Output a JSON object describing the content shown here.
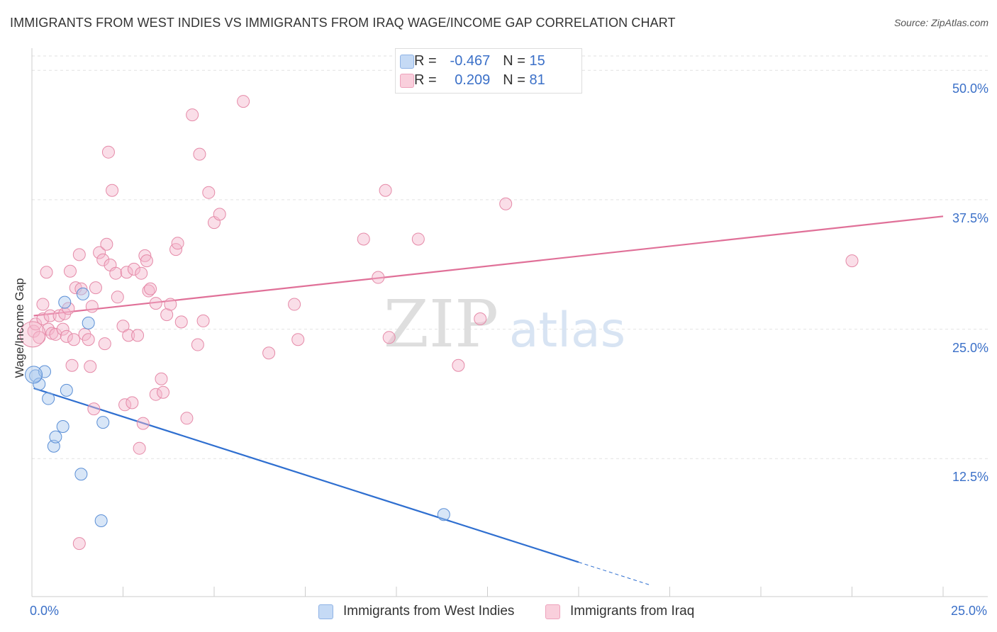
{
  "title": "IMMIGRANTS FROM WEST INDIES VS IMMIGRANTS FROM IRAQ WAGE/INCOME GAP CORRELATION CHART",
  "source": "Source: ZipAtlas.com",
  "watermark": {
    "zip": "ZIP",
    "atlas": "atlas"
  },
  "legend": {
    "r_label": "R =",
    "n_label": "N =",
    "west_indies": {
      "r": "-0.467",
      "n": "15",
      "color": "#a9c8ee"
    },
    "iraq": {
      "r": "0.209",
      "n": "81",
      "color": "#f5b6cb"
    }
  },
  "chart_data": {
    "type": "scatter",
    "xlabel": "",
    "ylabel": "Wage/Income Gap",
    "xlim": [
      0,
      25
    ],
    "ylim": [
      0,
      52
    ],
    "x_tick_labels": {
      "min": "0.0%",
      "max": "25.0%"
    },
    "y_ticks": [
      12.5,
      25.0,
      37.5,
      50.0
    ],
    "y_tick_labels": [
      "12.5%",
      "25.0%",
      "37.5%",
      "50.0%"
    ],
    "series": [
      {
        "name": "Immigrants from West Indies",
        "color": "#a9c8ee",
        "stroke": "#5b8fd6",
        "trend_color": "#2f6fd0",
        "trend": {
          "x0": 0.05,
          "y0": 19.3,
          "x1": 15.0,
          "y1": 2.5,
          "x_dash_end": 17.0
        },
        "points": [
          [
            0.1,
            20.5
          ],
          [
            0.2,
            19.7
          ],
          [
            0.35,
            20.9
          ],
          [
            0.45,
            18.3
          ],
          [
            0.6,
            13.7
          ],
          [
            0.65,
            14.6
          ],
          [
            0.85,
            15.6
          ],
          [
            0.95,
            19.1
          ],
          [
            0.9,
            27.6
          ],
          [
            1.4,
            28.4
          ],
          [
            1.55,
            25.6
          ],
          [
            1.35,
            11.0
          ],
          [
            1.9,
            6.5
          ],
          [
            1.95,
            16.0
          ],
          [
            11.3,
            7.1
          ]
        ]
      },
      {
        "name": "Immigrants from Iraq",
        "color": "#f5b6cb",
        "stroke": "#e58aa8",
        "trend_color": "#e07098",
        "trend": {
          "x0": 0.05,
          "y0": 26.3,
          "x1": 25.0,
          "y1": 35.9
        },
        "points": [
          [
            0.05,
            24.8
          ],
          [
            0.1,
            25.5
          ],
          [
            0.2,
            24.2
          ],
          [
            0.3,
            26.0
          ],
          [
            0.3,
            27.4
          ],
          [
            0.4,
            30.5
          ],
          [
            0.45,
            25.0
          ],
          [
            0.5,
            26.3
          ],
          [
            0.55,
            24.6
          ],
          [
            0.65,
            24.5
          ],
          [
            0.75,
            26.3
          ],
          [
            0.9,
            26.5
          ],
          [
            0.85,
            25.0
          ],
          [
            1.0,
            27.0
          ],
          [
            0.95,
            24.3
          ],
          [
            1.05,
            30.6
          ],
          [
            1.1,
            21.5
          ],
          [
            1.15,
            24.0
          ],
          [
            1.2,
            29.0
          ],
          [
            1.3,
            32.2
          ],
          [
            1.35,
            28.9
          ],
          [
            1.45,
            24.5
          ],
          [
            1.55,
            24.0
          ],
          [
            1.6,
            21.4
          ],
          [
            1.65,
            27.2
          ],
          [
            1.7,
            17.3
          ],
          [
            1.75,
            29.0
          ],
          [
            1.85,
            32.4
          ],
          [
            1.95,
            31.7
          ],
          [
            2.0,
            23.6
          ],
          [
            2.05,
            33.2
          ],
          [
            2.1,
            42.1
          ],
          [
            2.15,
            31.2
          ],
          [
            2.2,
            38.4
          ],
          [
            2.3,
            30.4
          ],
          [
            2.35,
            28.1
          ],
          [
            2.5,
            25.3
          ],
          [
            2.55,
            17.7
          ],
          [
            2.6,
            30.5
          ],
          [
            2.65,
            24.4
          ],
          [
            2.75,
            17.9
          ],
          [
            2.8,
            30.8
          ],
          [
            2.9,
            24.4
          ],
          [
            2.95,
            13.5
          ],
          [
            3.0,
            30.4
          ],
          [
            3.05,
            15.9
          ],
          [
            3.1,
            32.1
          ],
          [
            3.15,
            31.6
          ],
          [
            3.2,
            28.7
          ],
          [
            3.25,
            28.9
          ],
          [
            3.4,
            27.5
          ],
          [
            3.4,
            18.7
          ],
          [
            3.55,
            20.2
          ],
          [
            3.6,
            18.9
          ],
          [
            3.7,
            26.4
          ],
          [
            3.8,
            27.4
          ],
          [
            3.95,
            32.7
          ],
          [
            4.0,
            33.3
          ],
          [
            4.1,
            25.7
          ],
          [
            4.25,
            16.4
          ],
          [
            4.4,
            45.7
          ],
          [
            4.55,
            23.5
          ],
          [
            4.6,
            41.9
          ],
          [
            4.7,
            25.8
          ],
          [
            4.85,
            38.2
          ],
          [
            5.0,
            35.3
          ],
          [
            5.15,
            36.1
          ],
          [
            5.8,
            47.0
          ],
          [
            6.5,
            22.7
          ],
          [
            7.2,
            27.4
          ],
          [
            7.3,
            24.0
          ],
          [
            9.1,
            33.7
          ],
          [
            9.5,
            30.0
          ],
          [
            9.7,
            38.4
          ],
          [
            9.8,
            24.2
          ],
          [
            10.6,
            33.7
          ],
          [
            11.7,
            21.5
          ],
          [
            12.3,
            26.0
          ],
          [
            13.0,
            37.1
          ],
          [
            22.5,
            31.6
          ],
          [
            1.3,
            4.3
          ]
        ]
      }
    ]
  }
}
